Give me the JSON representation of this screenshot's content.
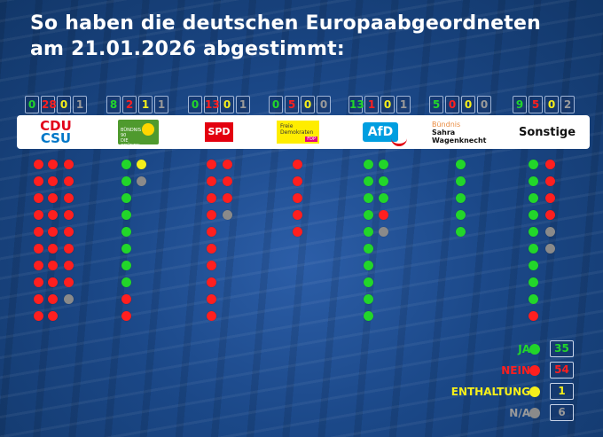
{
  "title": {
    "line1": "So haben die deutschen Europaabgeordneten",
    "line2": "am 21.01.2026 abgestimmt:"
  },
  "colors": {
    "ja": "#22d62a",
    "nein": "#ff1f1f",
    "enthaltung": "#f5ee1a",
    "na": "#8a8a8a"
  },
  "parties": [
    {
      "id": "cdu",
      "logo_lines": [
        "CDU",
        "CSU"
      ],
      "counts": [
        "0",
        "28",
        "0",
        "1"
      ],
      "votes": {
        "ja": 0,
        "nein": 28,
        "enthaltung": 0,
        "na": 1
      }
    },
    {
      "id": "gruene",
      "logo_lines": [
        "BÜNDNIS 90",
        "DIE GRÜNEN"
      ],
      "counts": [
        "8",
        "2",
        "1",
        "1"
      ],
      "votes": {
        "ja": 8,
        "nein": 2,
        "enthaltung": 1,
        "na": 1
      }
    },
    {
      "id": "spd",
      "logo_lines": [
        "SPD"
      ],
      "counts": [
        "0",
        "13",
        "0",
        "1"
      ],
      "votes": {
        "ja": 0,
        "nein": 13,
        "enthaltung": 0,
        "na": 1
      }
    },
    {
      "id": "fdp",
      "logo_lines": [
        "Freie",
        "Demokraten",
        "FDP"
      ],
      "counts": [
        "0",
        "5",
        "0",
        "0"
      ],
      "votes": {
        "ja": 0,
        "nein": 5,
        "enthaltung": 0,
        "na": 0
      }
    },
    {
      "id": "afd",
      "logo_lines": [
        "AfD"
      ],
      "counts": [
        "13",
        "1",
        "0",
        "1"
      ],
      "votes": {
        "ja": 13,
        "nein": 1,
        "enthaltung": 0,
        "na": 1
      }
    },
    {
      "id": "bsw",
      "logo_lines": [
        "Bündnis",
        "Sahra",
        "Wagenknecht"
      ],
      "counts": [
        "5",
        "0",
        "0",
        "0"
      ],
      "votes": {
        "ja": 5,
        "nein": 0,
        "enthaltung": 0,
        "na": 0
      }
    },
    {
      "id": "sonstige",
      "logo_lines": [
        "Sonstige"
      ],
      "counts": [
        "9",
        "5",
        "0",
        "2"
      ],
      "votes": {
        "ja": 9,
        "nein": 5,
        "enthaltung": 0,
        "na": 2
      }
    }
  ],
  "legend": [
    {
      "label": "JA",
      "count": "35",
      "color_key": "ja"
    },
    {
      "label": "NEIN",
      "count": "54",
      "color_key": "nein"
    },
    {
      "label": "ENTHALTUNG",
      "count": "1",
      "color_key": "enthaltung"
    },
    {
      "label": "N/A",
      "count": "6",
      "color_key": "na"
    }
  ]
}
